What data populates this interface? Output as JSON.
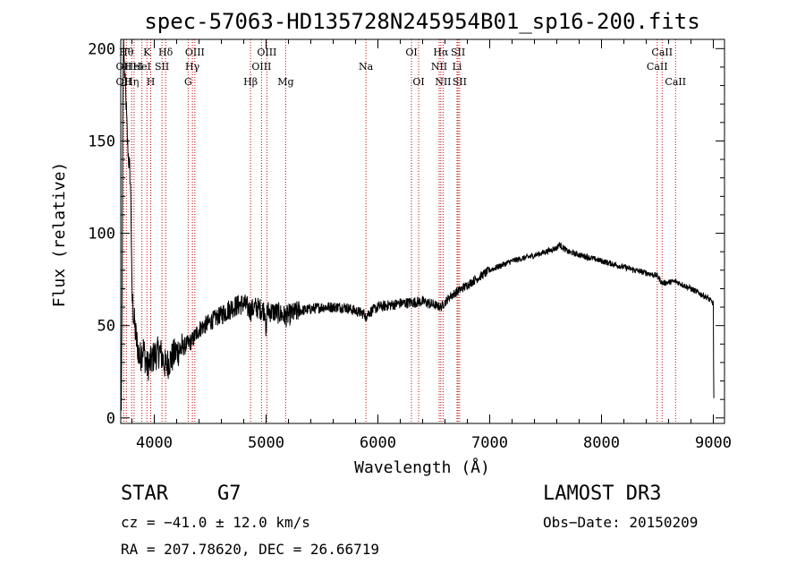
{
  "chart_data": {
    "type": "line",
    "title": "spec-57063-HD135728N245954B01_sp16-200.fits",
    "xlabel": "Wavelength (Å)",
    "ylabel": "Flux (relative)",
    "xlim": [
      3700,
      9100
    ],
    "ylim": [
      -3,
      205
    ],
    "x_ticks": [
      4000,
      5000,
      6000,
      7000,
      8000,
      9000
    ],
    "x_tick_labels": [
      "4000",
      "5000",
      "6000",
      "7000",
      "8000",
      "9000"
    ],
    "y_ticks": [
      0,
      50,
      100,
      150,
      200
    ],
    "y_tick_labels": [
      "0",
      "50",
      "100",
      "150",
      "200"
    ],
    "series": [
      {
        "name": "flux",
        "anchors": [
          [
            3705,
            4
          ],
          [
            3712,
            72
          ],
          [
            3718,
            170
          ],
          [
            3725,
            205
          ],
          [
            3732,
            190
          ],
          [
            3745,
            175
          ],
          [
            3760,
            150
          ],
          [
            3770,
            140
          ],
          [
            3780,
            135
          ],
          [
            3790,
            120
          ],
          [
            3800,
            68
          ],
          [
            3815,
            55
          ],
          [
            3840,
            42
          ],
          [
            3870,
            32
          ],
          [
            3900,
            38
          ],
          [
            3934,
            28
          ],
          [
            3968,
            30
          ],
          [
            4000,
            34
          ],
          [
            4050,
            36
          ],
          [
            4101,
            28
          ],
          [
            4150,
            32
          ],
          [
            4200,
            36
          ],
          [
            4250,
            38
          ],
          [
            4300,
            40
          ],
          [
            4340,
            42
          ],
          [
            4400,
            48
          ],
          [
            4500,
            52
          ],
          [
            4600,
            56
          ],
          [
            4700,
            60
          ],
          [
            4800,
            62
          ],
          [
            4861,
            58
          ],
          [
            4900,
            60
          ],
          [
            5000,
            58
          ],
          [
            5100,
            57
          ],
          [
            5175,
            55
          ],
          [
            5300,
            58
          ],
          [
            5500,
            60
          ],
          [
            5700,
            60
          ],
          [
            5893,
            56
          ],
          [
            6000,
            60
          ],
          [
            6200,
            62
          ],
          [
            6400,
            63
          ],
          [
            6563,
            60
          ],
          [
            6650,
            66
          ],
          [
            6800,
            72
          ],
          [
            7000,
            80
          ],
          [
            7200,
            85
          ],
          [
            7400,
            88
          ],
          [
            7600,
            92
          ],
          [
            7620,
            94
          ],
          [
            7700,
            90
          ],
          [
            8000,
            85
          ],
          [
            8300,
            80
          ],
          [
            8500,
            77
          ],
          [
            8542,
            73
          ],
          [
            8662,
            74
          ],
          [
            8800,
            70
          ],
          [
            8950,
            65
          ],
          [
            9000,
            62
          ],
          [
            9003,
            20
          ],
          [
            9006,
            6
          ]
        ]
      }
    ],
    "line_markers": [
      {
        "wl": 3727,
        "label": "OII",
        "row": 2
      },
      {
        "wl": 3727,
        "label": "OII",
        "row": 3
      },
      {
        "wl": 3750,
        "label": "Hθ",
        "row": 1
      },
      {
        "wl": 3798,
        "label": "Hη",
        "row": 3
      },
      {
        "wl": 3819,
        "label": "HeI",
        "row": 2
      },
      {
        "wl": 3889,
        "label": "HeI",
        "row": 2
      },
      {
        "wl": 3934,
        "label": "K",
        "row": 1
      },
      {
        "wl": 3968,
        "label": "H",
        "row": 3
      },
      {
        "wl": 4069,
        "label": "SII",
        "row": 2
      },
      {
        "wl": 4101,
        "label": "Hδ",
        "row": 1
      },
      {
        "wl": 4303,
        "label": "G",
        "row": 3
      },
      {
        "wl": 4341,
        "label": "Hγ",
        "row": 2
      },
      {
        "wl": 4363,
        "label": "OIII",
        "row": 1
      },
      {
        "wl": 4861,
        "label": "Hβ",
        "row": 3
      },
      {
        "wl": 4959,
        "label": "OIII",
        "row": 2
      },
      {
        "wl": 5007,
        "label": "OIII",
        "row": 1
      },
      {
        "wl": 5175,
        "label": "Mg",
        "row": 3
      },
      {
        "wl": 5893,
        "label": "Na",
        "row": 2
      },
      {
        "wl": 6300,
        "label": "OI",
        "row": 1
      },
      {
        "wl": 6364,
        "label": "OI",
        "row": 3
      },
      {
        "wl": 6548,
        "label": "NII",
        "row": 2
      },
      {
        "wl": 6563,
        "label": "Hα",
        "row": 1
      },
      {
        "wl": 6583,
        "label": "NII",
        "row": 3
      },
      {
        "wl": 6708,
        "label": "Li",
        "row": 2
      },
      {
        "wl": 6717,
        "label": "SII",
        "row": 1
      },
      {
        "wl": 6731,
        "label": "SII",
        "row": 3
      },
      {
        "wl": 8498,
        "label": "CaII",
        "row": 2
      },
      {
        "wl": 8542,
        "label": "CaII",
        "row": 1
      },
      {
        "wl": 8662,
        "label": "CaII",
        "row": 3
      }
    ]
  },
  "info": {
    "object_class": "STAR",
    "subclass": "G7",
    "survey": "LAMOST DR3",
    "cz": "cz = −41.0 ± 12.0 km/s",
    "obs_date": "Obs−Date: 20150209",
    "coords": "RA = 207.78620, DEC =  26.66719"
  },
  "colors": {
    "spectrum": "#000000",
    "marker": "#c00000",
    "background": "#ffffff"
  }
}
